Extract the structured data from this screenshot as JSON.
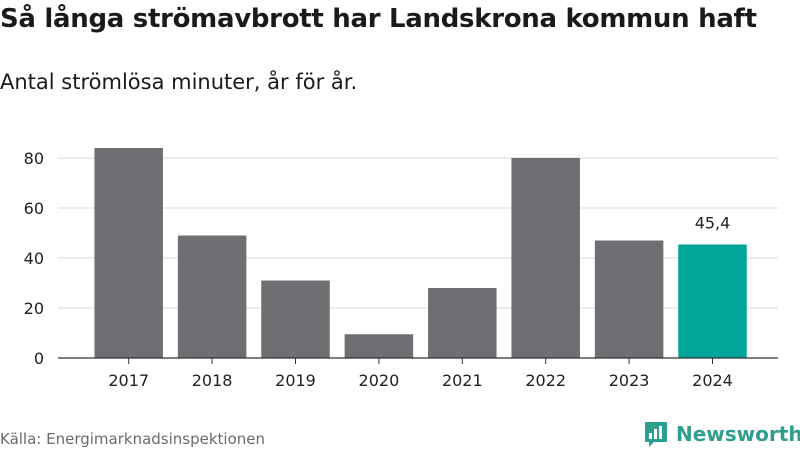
{
  "header": {
    "title": "Så långa strömavbrott har Landskrona kommun haft",
    "subtitle": "Antal strömlösa minuter, år för år."
  },
  "footer": {
    "source": "Källa: Energimarknadsinspektionen",
    "brand_name": "Newsworthy",
    "brand_logo_icon": "newsworthy-logo-icon"
  },
  "colors": {
    "bar": "#6f6e73",
    "highlight": "#00a699",
    "grid": "#d9d9d9",
    "axis": "#333333",
    "brand": "#2e9e8f"
  },
  "chart_data": {
    "type": "bar",
    "categories": [
      "2017",
      "2018",
      "2019",
      "2020",
      "2021",
      "2022",
      "2023",
      "2024"
    ],
    "values": [
      84,
      49,
      31,
      9.5,
      28,
      80,
      47,
      45.4
    ],
    "highlight_index": 7,
    "data_labels": [
      {
        "index": 7,
        "text": "45,4"
      }
    ],
    "yticks": [
      0,
      20,
      40,
      60,
      80
    ],
    "ylim": [
      0,
      90
    ],
    "grid": true,
    "xlabel": "",
    "ylabel": ""
  }
}
